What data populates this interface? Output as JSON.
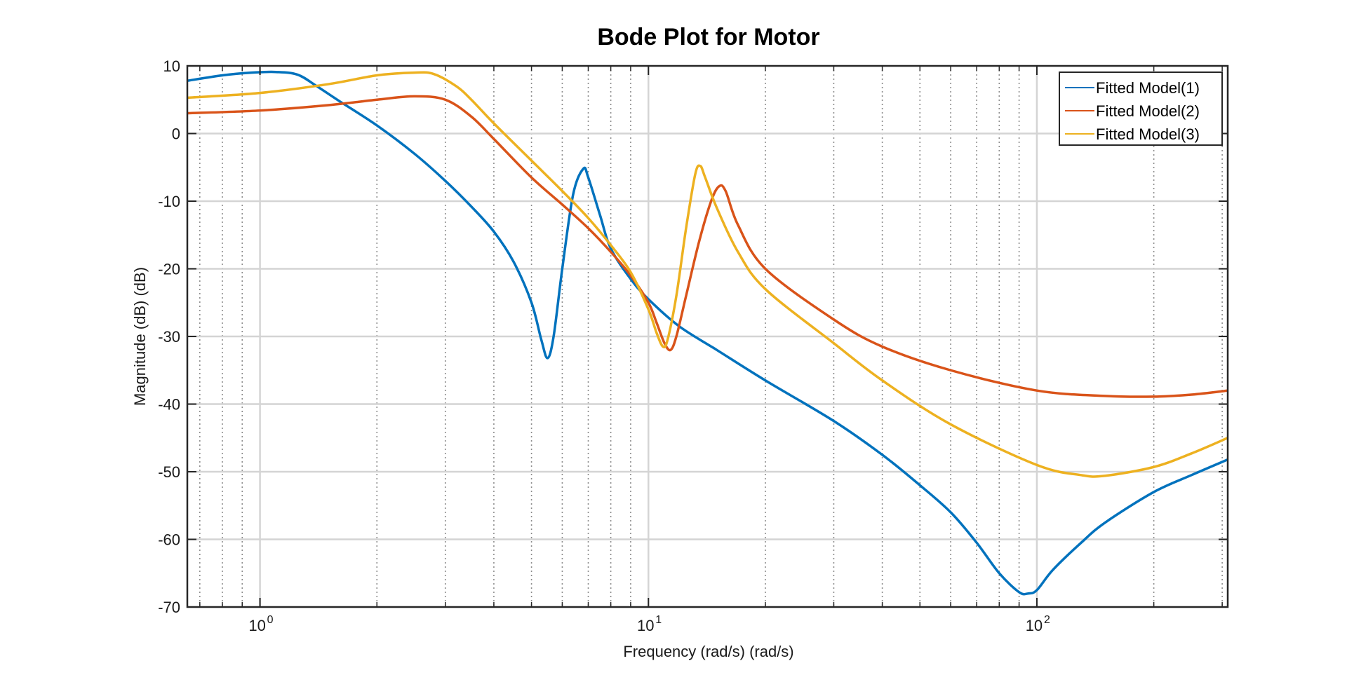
{
  "chart_data": {
    "type": "line",
    "title": "Bode Plot for Motor",
    "xlabel": "Frequency (rad/s)  (rad/s)",
    "ylabel": "Magnitude (dB) (dB)",
    "xscale": "log",
    "xlim": [
      0.65,
      310
    ],
    "ylim": [
      -70,
      10
    ],
    "yticks": [
      -70,
      -60,
      -50,
      -40,
      -30,
      -20,
      -10,
      0,
      10
    ],
    "xticks": [
      {
        "value": 1,
        "base": "10",
        "exp": "0"
      },
      {
        "value": 10,
        "base": "10",
        "exp": "1"
      },
      {
        "value": 100,
        "base": "10",
        "exp": "2"
      }
    ],
    "grid": true,
    "minor_grid": true,
    "legend_position": "top-right",
    "series": [
      {
        "name": "Fitted Model(1)",
        "color": "#0072BD",
        "x": [
          0.65,
          0.8,
          0.95,
          1.1,
          1.25,
          1.4,
          1.6,
          2.0,
          2.5,
          3.0,
          3.5,
          4.0,
          4.5,
          5.0,
          5.3,
          5.5,
          5.7,
          6.0,
          6.4,
          6.8,
          7.0,
          7.5,
          8.0,
          9.0,
          10.0,
          12.0,
          15.0,
          20.0,
          30.0,
          40.0,
          50.0,
          60.0,
          70.0,
          80.0,
          90.0,
          95.0,
          100.0,
          110.0,
          130.0,
          150.0,
          200.0,
          250.0,
          310.0
        ],
        "y": [
          7.8,
          8.6,
          9.0,
          9.1,
          8.7,
          7.0,
          4.8,
          1.2,
          -3.0,
          -7.0,
          -10.8,
          -14.5,
          -19.0,
          -25.0,
          -30.5,
          -33.2,
          -30.0,
          -20.0,
          -9.0,
          -5.2,
          -6.5,
          -12.0,
          -17.0,
          -21.5,
          -24.5,
          -28.5,
          -32.0,
          -36.5,
          -42.5,
          -47.5,
          -52.0,
          -56.0,
          -60.5,
          -65.0,
          -67.8,
          -68.0,
          -67.5,
          -64.5,
          -60.5,
          -57.5,
          -53.0,
          -50.5,
          -48.2
        ]
      },
      {
        "name": "Fitted Model(2)",
        "color": "#D95319",
        "x": [
          0.65,
          1.0,
          1.5,
          2.0,
          2.5,
          3.0,
          3.5,
          4.0,
          5.0,
          6.0,
          7.0,
          8.0,
          9.0,
          10.0,
          10.5,
          11.0,
          11.4,
          11.8,
          12.5,
          13.5,
          14.5,
          15.2,
          15.8,
          17.0,
          20.0,
          30.0,
          40.0,
          60.0,
          100.0,
          150.0,
          200.0,
          250.0,
          310.0
        ],
        "y": [
          3.0,
          3.4,
          4.2,
          5.0,
          5.5,
          5.0,
          2.5,
          -0.8,
          -6.5,
          -10.5,
          -14.0,
          -17.5,
          -21.0,
          -25.0,
          -28.0,
          -31.0,
          -32.0,
          -30.0,
          -24.0,
          -16.0,
          -10.0,
          -7.8,
          -8.5,
          -13.5,
          -20.0,
          -27.5,
          -31.5,
          -35.0,
          -38.0,
          -38.8,
          -38.9,
          -38.6,
          -38.0
        ]
      },
      {
        "name": "Fitted Model(3)",
        "color": "#EDB120",
        "x": [
          0.65,
          1.0,
          1.5,
          2.0,
          2.5,
          2.8,
          3.2,
          3.5,
          4.0,
          5.0,
          6.0,
          7.0,
          8.0,
          9.0,
          10.0,
          10.5,
          10.9,
          11.2,
          11.8,
          12.5,
          13.2,
          13.6,
          14.0,
          15.0,
          17.0,
          20.0,
          30.0,
          40.0,
          60.0,
          100.0,
          130.0,
          150.0,
          200.0,
          250.0,
          310.0
        ],
        "y": [
          5.3,
          6.0,
          7.3,
          8.6,
          9.0,
          8.8,
          7.0,
          5.0,
          1.5,
          -4.0,
          -8.5,
          -12.5,
          -16.5,
          -20.5,
          -26.0,
          -29.5,
          -31.5,
          -30.5,
          -24.0,
          -14.0,
          -6.0,
          -4.8,
          -6.5,
          -11.0,
          -17.5,
          -23.0,
          -31.0,
          -36.5,
          -43.0,
          -49.0,
          -50.5,
          -50.6,
          -49.3,
          -47.3,
          -45.0
        ]
      }
    ]
  }
}
